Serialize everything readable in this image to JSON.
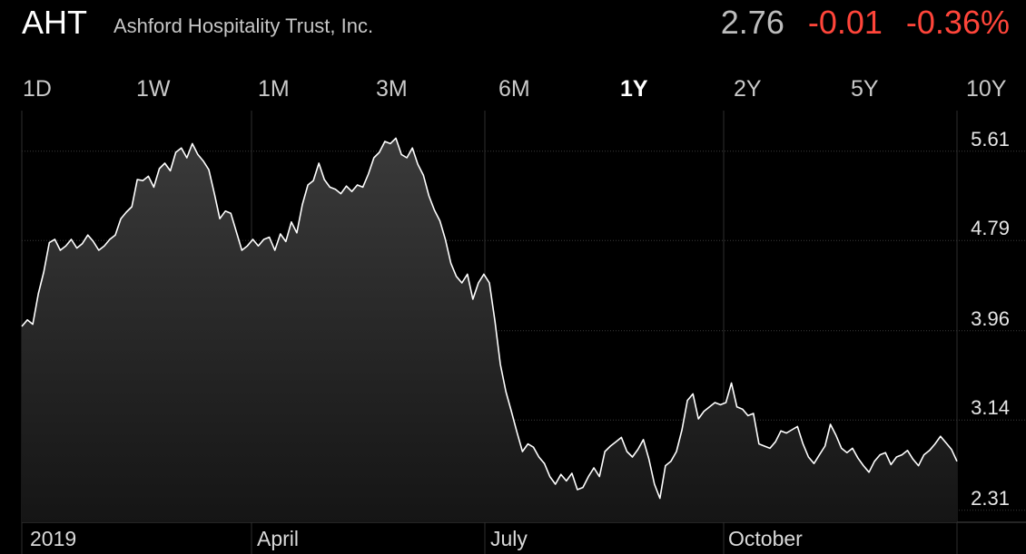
{
  "header": {
    "ticker": "AHT",
    "company": "Ashford Hospitality Trust, Inc.",
    "price": "2.76",
    "change": "-0.01",
    "change_pct": "-0.36%"
  },
  "colors": {
    "negative": "#ff453a",
    "line": "#ffffff",
    "grid": "#3a3a3a",
    "background": "#000000"
  },
  "ranges": {
    "items": [
      {
        "label": "1D"
      },
      {
        "label": "1W"
      },
      {
        "label": "1M"
      },
      {
        "label": "3M"
      },
      {
        "label": "6M"
      },
      {
        "label": "1Y"
      },
      {
        "label": "2Y"
      },
      {
        "label": "5Y"
      },
      {
        "label": "10Y"
      }
    ],
    "selected": "1Y"
  },
  "chart_data": {
    "type": "area",
    "title": "",
    "xlabel": "",
    "ylabel": "",
    "x_tick_labels": [
      "2019",
      "April",
      "July",
      "October"
    ],
    "y_tick_labels": [
      "5.61",
      "4.79",
      "3.96",
      "3.14",
      "2.31"
    ],
    "ylim": [
      2.2,
      5.75
    ],
    "grid": true,
    "series": [
      {
        "values": [
          4.0,
          4.06,
          4.02,
          4.3,
          4.5,
          4.77,
          4.8,
          4.7,
          4.74,
          4.8,
          4.72,
          4.76,
          4.84,
          4.78,
          4.7,
          4.74,
          4.8,
          4.84,
          4.99,
          5.05,
          5.1,
          5.35,
          5.34,
          5.38,
          5.28,
          5.45,
          5.5,
          5.43,
          5.6,
          5.64,
          5.55,
          5.68,
          5.58,
          5.52,
          5.44,
          5.22,
          4.99,
          5.06,
          5.04,
          4.87,
          4.7,
          4.74,
          4.8,
          4.74,
          4.8,
          4.82,
          4.7,
          4.85,
          4.78,
          4.96,
          4.86,
          5.12,
          5.3,
          5.34,
          5.5,
          5.35,
          5.28,
          5.26,
          5.22,
          5.29,
          5.24,
          5.3,
          5.28,
          5.4,
          5.55,
          5.6,
          5.7,
          5.68,
          5.73,
          5.58,
          5.55,
          5.64,
          5.49,
          5.39,
          5.2,
          5.07,
          4.97,
          4.8,
          4.58,
          4.46,
          4.4,
          4.48,
          4.25,
          4.4,
          4.48,
          4.4,
          4.05,
          3.65,
          3.4,
          3.22,
          3.03,
          2.85,
          2.92,
          2.89,
          2.8,
          2.74,
          2.62,
          2.55,
          2.64,
          2.58,
          2.65,
          2.5,
          2.52,
          2.62,
          2.7,
          2.62,
          2.85,
          2.9,
          2.94,
          2.98,
          2.85,
          2.8,
          2.87,
          2.96,
          2.78,
          2.55,
          2.42,
          2.72,
          2.76,
          2.85,
          3.05,
          3.32,
          3.38,
          3.15,
          3.22,
          3.26,
          3.3,
          3.28,
          3.3,
          3.48,
          3.26,
          3.24,
          3.18,
          3.2,
          2.92,
          2.9,
          2.88,
          2.94,
          3.04,
          3.02,
          3.05,
          3.08,
          2.92,
          2.8,
          2.74,
          2.82,
          2.9,
          3.1,
          3.0,
          2.88,
          2.84,
          2.88,
          2.79,
          2.72,
          2.66,
          2.76,
          2.82,
          2.84,
          2.73,
          2.8,
          2.82,
          2.86,
          2.78,
          2.72,
          2.82,
          2.86,
          2.92,
          2.99,
          2.93,
          2.87,
          2.76
        ]
      }
    ]
  }
}
